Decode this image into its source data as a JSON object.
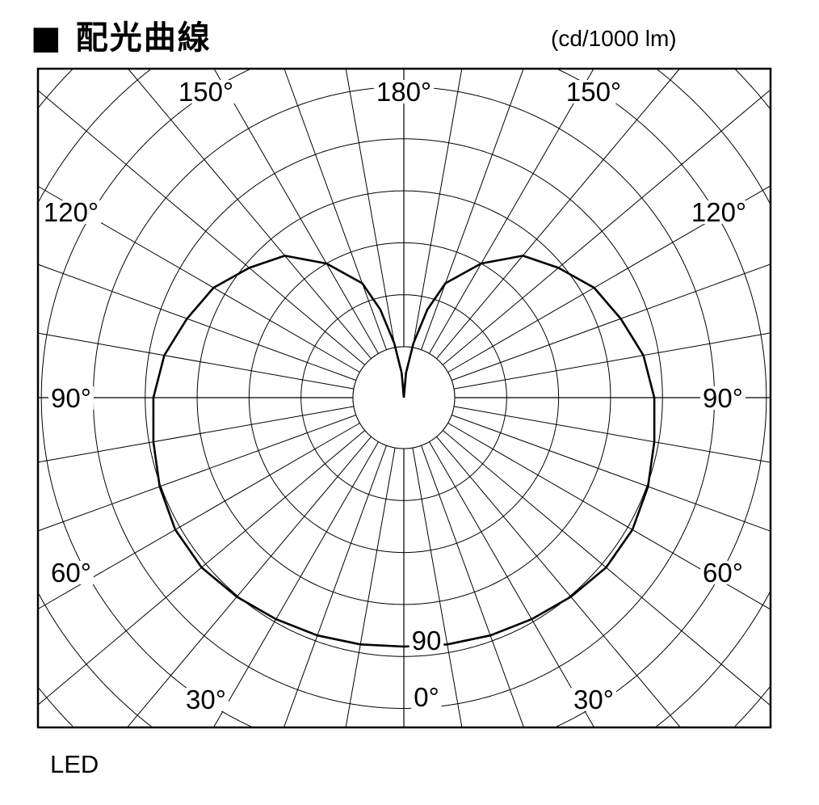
{
  "title": "■ 配光曲線",
  "unit": "(cd/1000 lm)",
  "footer": "LED",
  "chart_data": {
    "type": "polar-line",
    "title": "配光曲線",
    "unit": "cd/1000 lm",
    "angle_labels": [
      {
        "text": "180°",
        "angle": 180
      },
      {
        "text": "150°",
        "angle": 150,
        "side": "left"
      },
      {
        "text": "150°",
        "angle": 150,
        "side": "right"
      },
      {
        "text": "120°",
        "angle": 120,
        "side": "left"
      },
      {
        "text": "120°",
        "angle": 120,
        "side": "right"
      },
      {
        "text": "90°",
        "angle": 90,
        "side": "left"
      },
      {
        "text": "90°",
        "angle": 90,
        "side": "right"
      },
      {
        "text": "60°",
        "angle": 60,
        "side": "left"
      },
      {
        "text": "60°",
        "angle": 60,
        "side": "right"
      },
      {
        "text": "30°",
        "angle": 30,
        "side": "left"
      },
      {
        "text": "30°",
        "angle": 30,
        "side": "right"
      },
      {
        "text": "0°",
        "angle": 0
      }
    ],
    "value_label": {
      "text": "90",
      "value": 90,
      "angle": 0
    },
    "radial_step_deg": 10,
    "symmetric": true,
    "series": [
      {
        "angles": [
          0,
          10,
          20,
          30,
          40,
          50,
          60,
          70,
          80,
          90,
          100,
          105,
          110,
          120,
          130,
          140,
          150,
          160,
          165,
          170,
          175,
          180
        ],
        "values": [
          90,
          90.6,
          91.5,
          92.5,
          94,
          95.5,
          95.5,
          94,
          92,
          90.6,
          88,
          85.4,
          83.5,
          79.5,
          73,
          67,
          56,
          44,
          33,
          20,
          9,
          0
        ]
      }
    ],
    "grid": true
  }
}
